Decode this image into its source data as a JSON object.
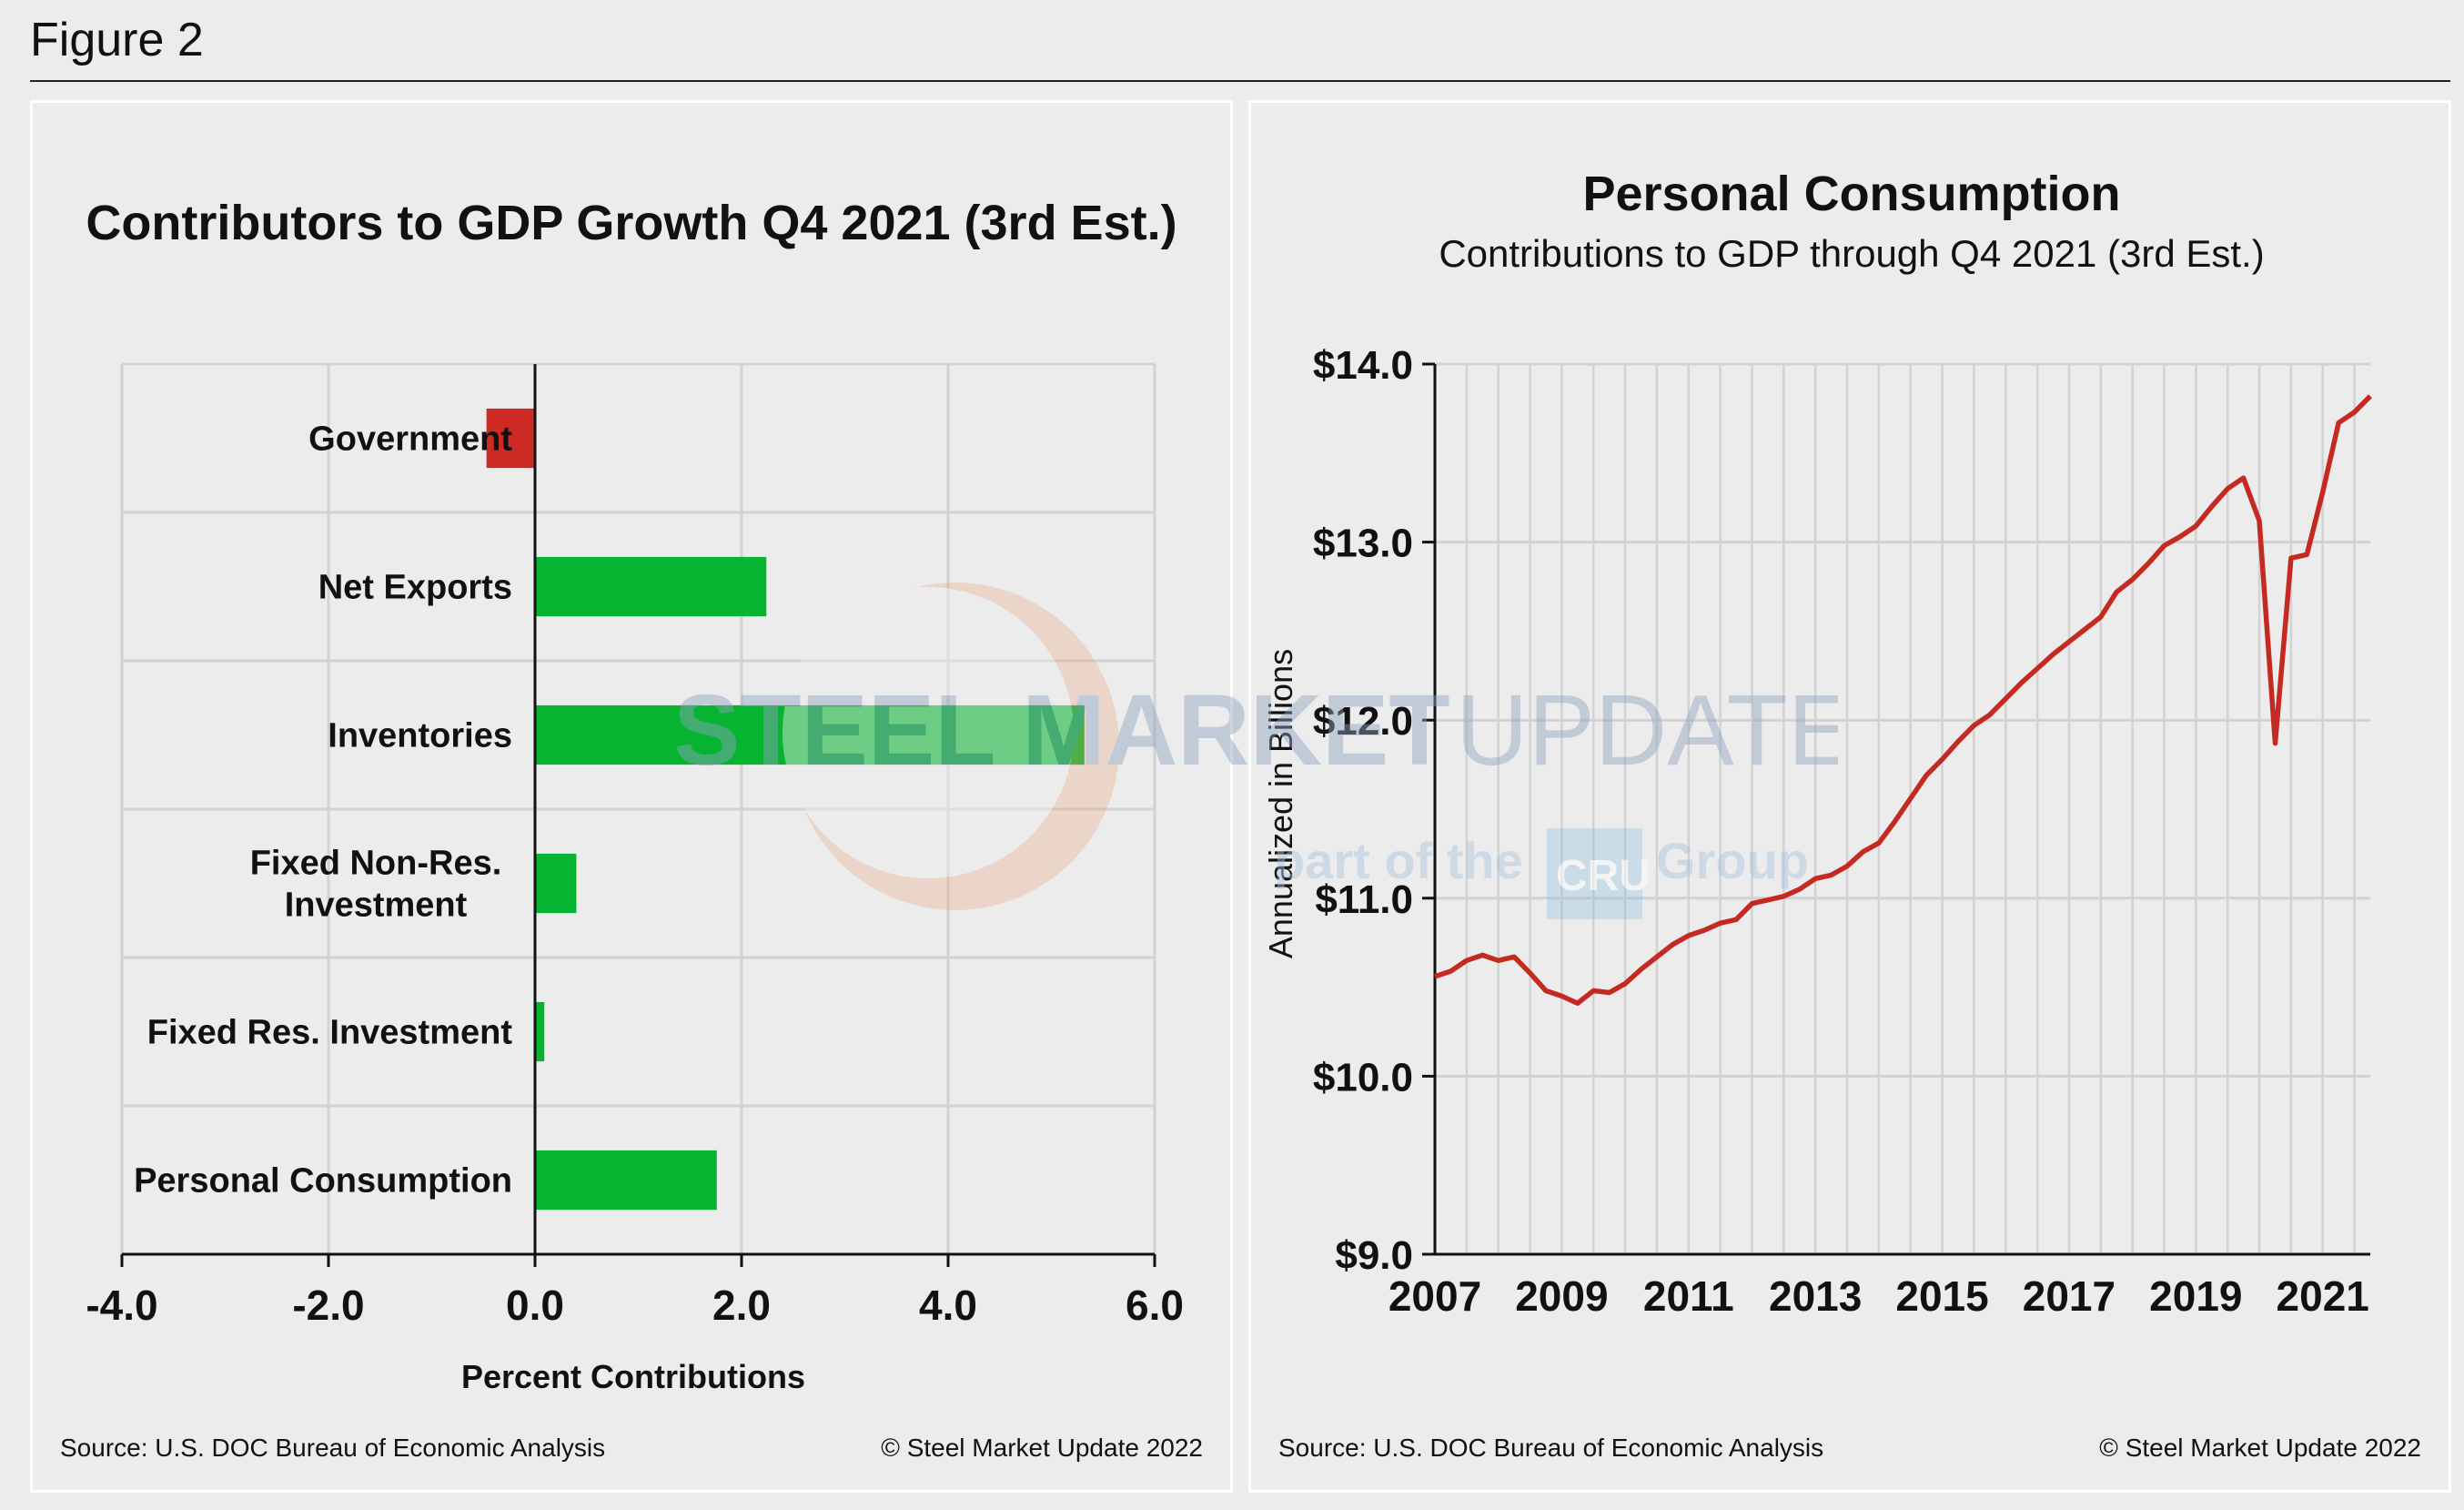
{
  "figure_label": "Figure 2",
  "colors": {
    "positive_bar": "#07b431",
    "negative_bar": "#cc2a22",
    "line": "#c42a22",
    "grid": "#d2d2d2",
    "axis": "#111111"
  },
  "watermark": {
    "brand": "STEEL MARKET",
    "brand_light": "UPDATE",
    "sub_prefix": "part of the",
    "sub_logo": "CRU",
    "sub_suffix": "Group"
  },
  "chart_data": [
    {
      "type": "bar",
      "orientation": "horizontal",
      "title": "Contributors to GDP Growth Q4 2021 (3rd Est.)",
      "xlabel": "Percent Contributions",
      "ylabel": "",
      "categories": [
        "Government",
        "Net Exports",
        "Inventories",
        "Fixed Non-Res. Investment",
        "Fixed Res. Investment",
        "Personal Consumption"
      ],
      "category_lines": [
        [
          "Government"
        ],
        [
          "Net Exports"
        ],
        [
          "Inventories"
        ],
        [
          "Fixed Non-Res.",
          "Investment"
        ],
        [
          "Fixed Res. Investment"
        ],
        [
          "Personal Consumption"
        ]
      ],
      "values": [
        -0.47,
        2.24,
        5.32,
        0.4,
        0.09,
        1.76
      ],
      "xlim": [
        -4.0,
        6.0
      ],
      "xticks": [
        -4.0,
        -2.0,
        0.0,
        2.0,
        4.0,
        6.0
      ],
      "xtick_labels": [
        "-4.0",
        "-2.0",
        "0.0",
        "2.0",
        "4.0",
        "6.0"
      ],
      "grid": true,
      "source": "Source: U.S. DOC Bureau of Economic Analysis",
      "copyright": "© Steel Market Update 2022"
    },
    {
      "type": "line",
      "title": "Personal Consumption",
      "subtitle": "Contributions to GDP through Q4 2021 (3rd Est.)",
      "ylabel": "Annualized in Billions",
      "xlabel": "",
      "ylim": [
        9.0,
        14.0
      ],
      "yticks": [
        9.0,
        10.0,
        11.0,
        12.0,
        13.0,
        14.0
      ],
      "ytick_labels": [
        "$9.0",
        "$10.0",
        "$11.0",
        "$12.0",
        "$13.0",
        "$14.0"
      ],
      "xlim": [
        2007.0,
        2021.75
      ],
      "xticks": [
        2007,
        2009,
        2011,
        2013,
        2015,
        2017,
        2019,
        2021
      ],
      "xtick_labels": [
        "2007",
        "2009",
        "2011",
        "2013",
        "2015",
        "2017",
        "2019",
        "2021"
      ],
      "grid": true,
      "series": [
        {
          "x": [
            2007.0,
            2007.25,
            2007.5,
            2007.75,
            2008.0,
            2008.25,
            2008.5,
            2008.75,
            2009.0,
            2009.25,
            2009.5,
            2009.75,
            2010.0,
            2010.25,
            2010.5,
            2010.75,
            2011.0,
            2011.25,
            2011.5,
            2011.75,
            2012.0,
            2012.25,
            2012.5,
            2012.75,
            2013.0,
            2013.25,
            2013.5,
            2013.75,
            2014.0,
            2014.25,
            2014.5,
            2014.75,
            2015.0,
            2015.25,
            2015.5,
            2015.75,
            2016.0,
            2016.25,
            2016.5,
            2016.75,
            2017.0,
            2017.25,
            2017.5,
            2017.75,
            2018.0,
            2018.25,
            2018.5,
            2018.75,
            2019.0,
            2019.25,
            2019.5,
            2019.75,
            2020.0,
            2020.25,
            2020.5,
            2020.75,
            2021.0,
            2021.25,
            2021.5,
            2021.75
          ],
          "values": [
            10.56,
            10.59,
            10.65,
            10.68,
            10.65,
            10.67,
            10.58,
            10.48,
            10.45,
            10.41,
            10.48,
            10.47,
            10.52,
            10.6,
            10.67,
            10.74,
            10.79,
            10.82,
            10.86,
            10.88,
            10.97,
            10.99,
            11.01,
            11.05,
            11.11,
            11.13,
            11.18,
            11.26,
            11.31,
            11.43,
            11.56,
            11.69,
            11.78,
            11.88,
            11.97,
            12.03,
            12.12,
            12.21,
            12.29,
            12.37,
            12.44,
            12.51,
            12.58,
            12.72,
            12.79,
            12.88,
            12.98,
            13.03,
            13.09,
            13.2,
            13.3,
            13.36,
            13.12,
            11.87,
            12.91,
            12.93,
            13.28,
            13.67,
            13.73,
            13.82
          ]
        }
      ],
      "source": "Source: U.S. DOC Bureau of Economic Analysis",
      "copyright": "© Steel Market Update 2022"
    }
  ]
}
